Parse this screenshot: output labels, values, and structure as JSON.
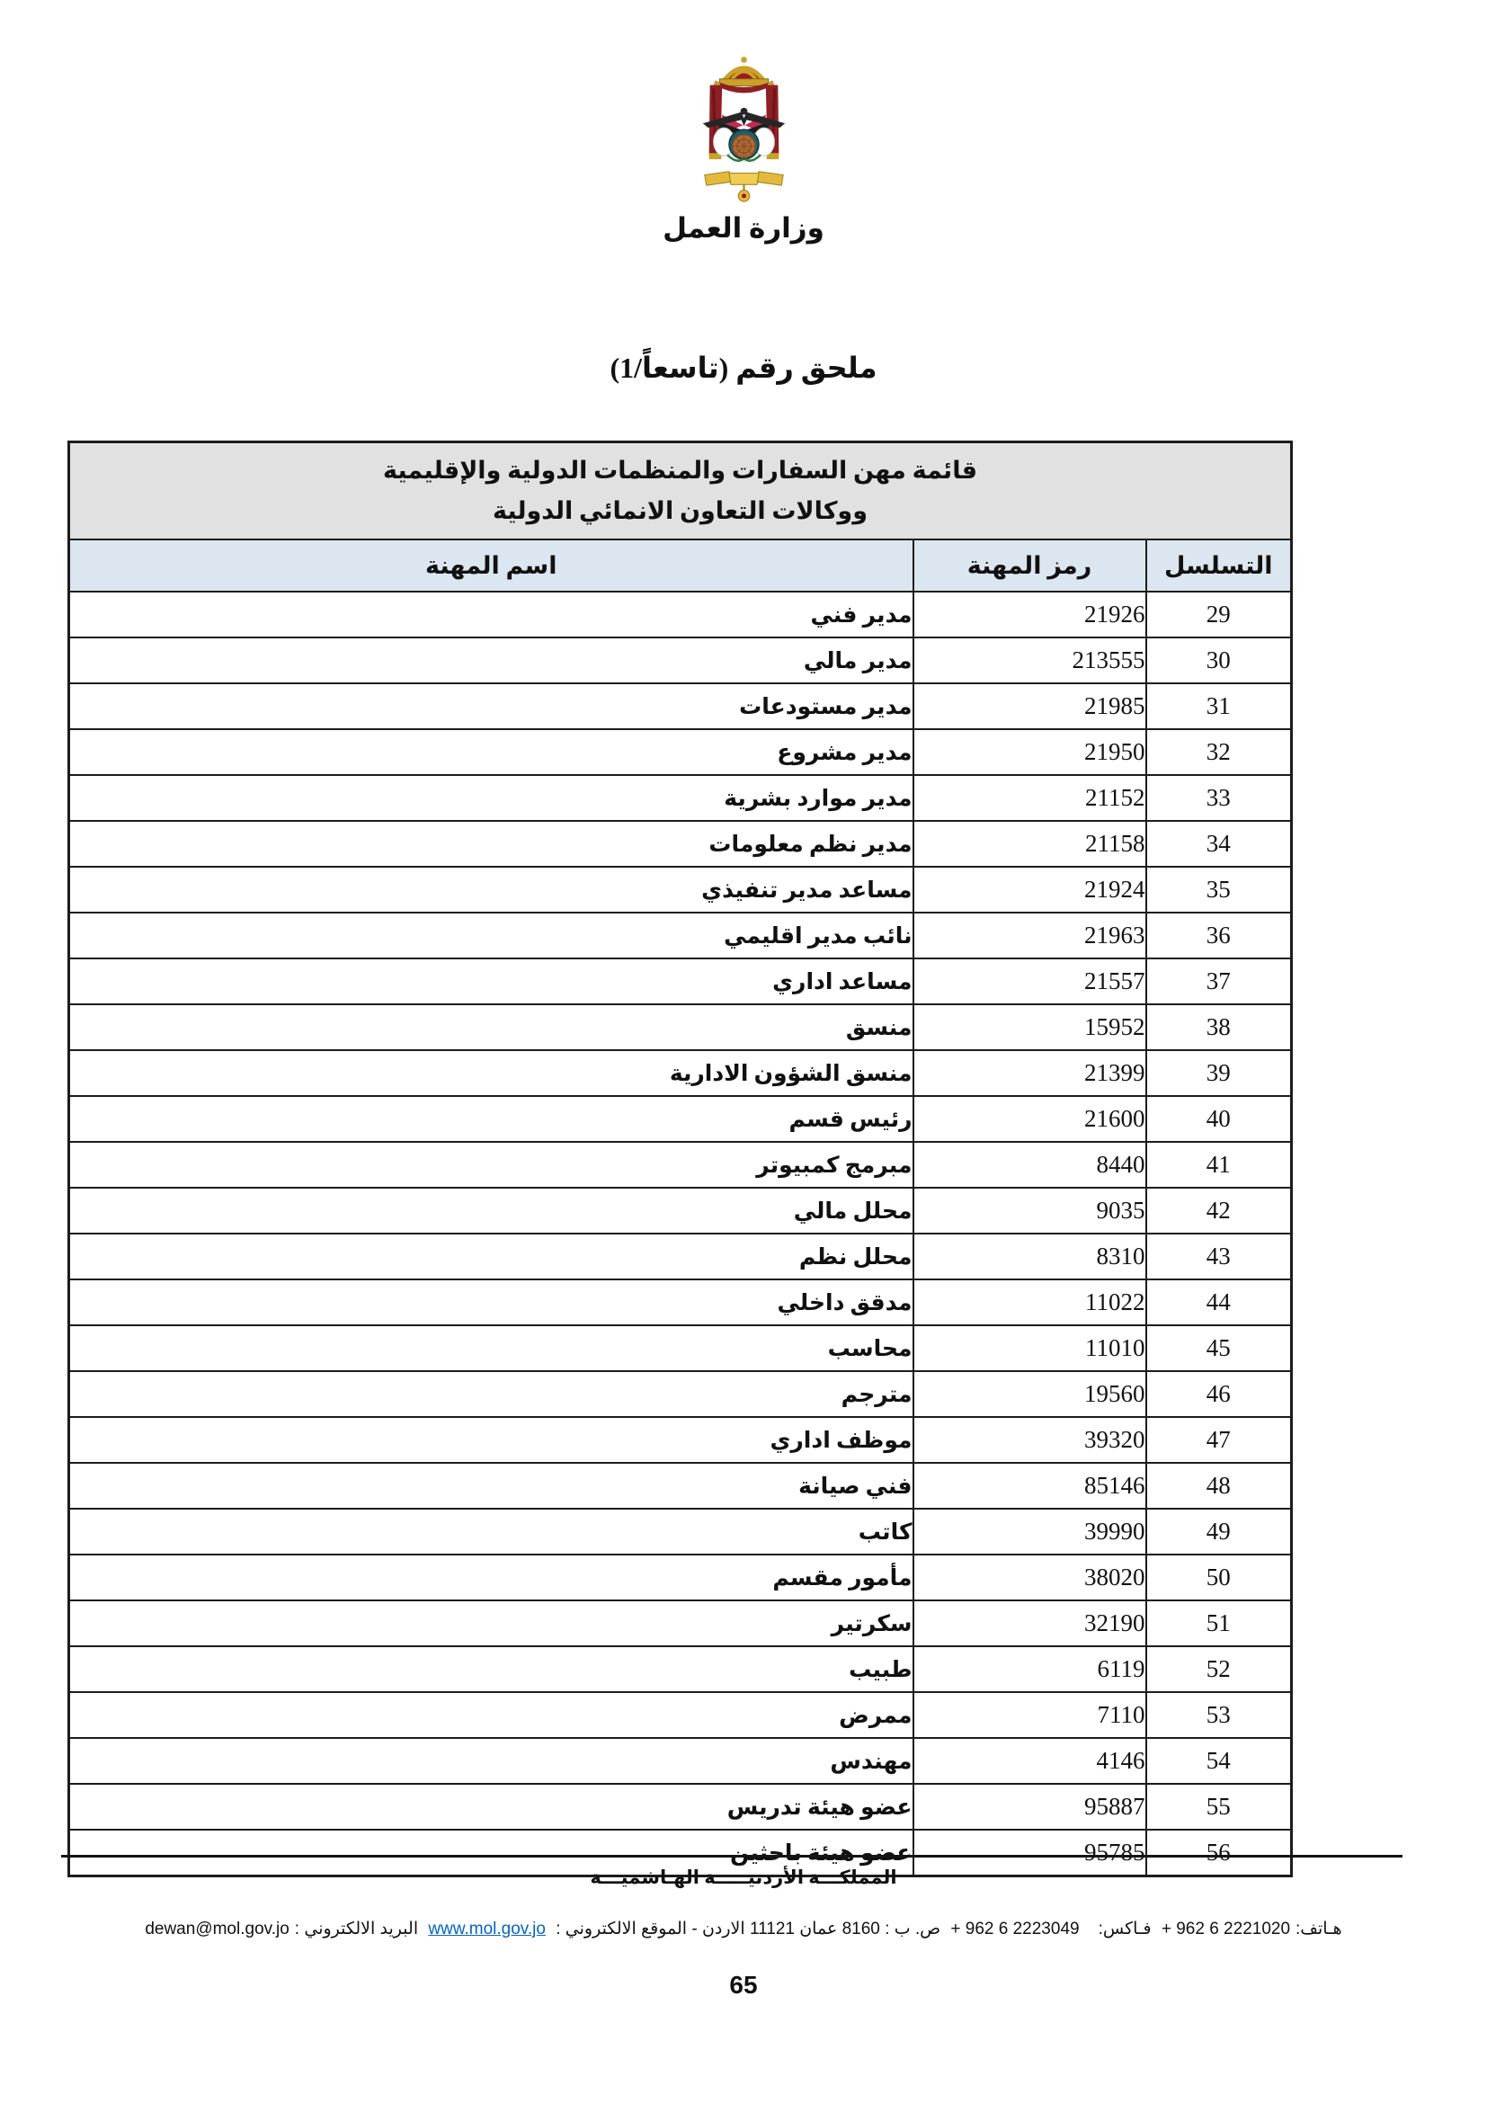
{
  "header": {
    "emblem_icon": "jordan-coat-of-arms",
    "ministry": "وزارة العمل"
  },
  "title": "ملحق رقم (تاسعاً/1)",
  "table": {
    "caption_line1": "قائمة مهن السفارات والمنظمات الدولية والإقليمية",
    "caption_line2": "ووكالات التعاون الانمائي الدولية",
    "columns": {
      "serial": "التسلسل",
      "code": "رمز المهنة",
      "name": "اسم المهنة"
    },
    "rows": [
      {
        "serial": "29",
        "code": "21926",
        "name": "مدير فني"
      },
      {
        "serial": "30",
        "code": "213555",
        "name": "مدير مالي"
      },
      {
        "serial": "31",
        "code": "21985",
        "name": "مدير مستودعات"
      },
      {
        "serial": "32",
        "code": "21950",
        "name": "مدير مشروع"
      },
      {
        "serial": "33",
        "code": "21152",
        "name": "مدير موارد بشرية"
      },
      {
        "serial": "34",
        "code": "21158",
        "name": "مدير نظم معلومات"
      },
      {
        "serial": "35",
        "code": "21924",
        "name": "مساعد مدير تنفيذي"
      },
      {
        "serial": "36",
        "code": "21963",
        "name": "نائب مدير اقليمي"
      },
      {
        "serial": "37",
        "code": "21557",
        "name": "مساعد اداري"
      },
      {
        "serial": "38",
        "code": "15952",
        "name": "منسق"
      },
      {
        "serial": "39",
        "code": "21399",
        "name": "منسق الشؤون الادارية"
      },
      {
        "serial": "40",
        "code": "21600",
        "name": "رئيس قسم"
      },
      {
        "serial": "41",
        "code": "8440",
        "name": "مبرمج كمبيوتر"
      },
      {
        "serial": "42",
        "code": "9035",
        "name": "محلل مالي"
      },
      {
        "serial": "43",
        "code": "8310",
        "name": "محلل نظم"
      },
      {
        "serial": "44",
        "code": "11022",
        "name": "مدقق داخلي"
      },
      {
        "serial": "45",
        "code": "11010",
        "name": "محاسب"
      },
      {
        "serial": "46",
        "code": "19560",
        "name": "مترجم"
      },
      {
        "serial": "47",
        "code": "39320",
        "name": "موظف اداري"
      },
      {
        "serial": "48",
        "code": "85146",
        "name": "فني صيانة"
      },
      {
        "serial": "49",
        "code": "39990",
        "name": "كاتب"
      },
      {
        "serial": "50",
        "code": "38020",
        "name": "مأمور مقسم"
      },
      {
        "serial": "51",
        "code": "32190",
        "name": "سكرتير"
      },
      {
        "serial": "52",
        "code": "6119",
        "name": "طبيب"
      },
      {
        "serial": "53",
        "code": "7110",
        "name": "ممرض"
      },
      {
        "serial": "54",
        "code": "4146",
        "name": "مهندس"
      },
      {
        "serial": "55",
        "code": "95887",
        "name": "عضو هيئة تدريس"
      },
      {
        "serial": "56",
        "code": "95785",
        "name": "عضو هيئة باحثين"
      }
    ]
  },
  "footer": {
    "kingdom": "المملكـــة الأردنيـــــة الهـاشميـــة",
    "contact": {
      "phone_label": "هـاتف:",
      "phone": "+ 962 6 2221020",
      "fax_label": "فـاكس:",
      "fax": "+ 962 6 2223049",
      "address_web_label": "ص. ب : 8160 عمان 11121 الاردن - الموقع الالكتروني :",
      "website": "www.mol.gov.jo",
      "email_label": "البريد الالكتروني :",
      "email": "dewan@mol.gov.jo"
    },
    "page_number": "65"
  },
  "colors": {
    "caption_bg": "#e1e1e1",
    "header_bg": "#dce6f0",
    "link_color": "#0563c1",
    "border": "#1c1c1c"
  }
}
